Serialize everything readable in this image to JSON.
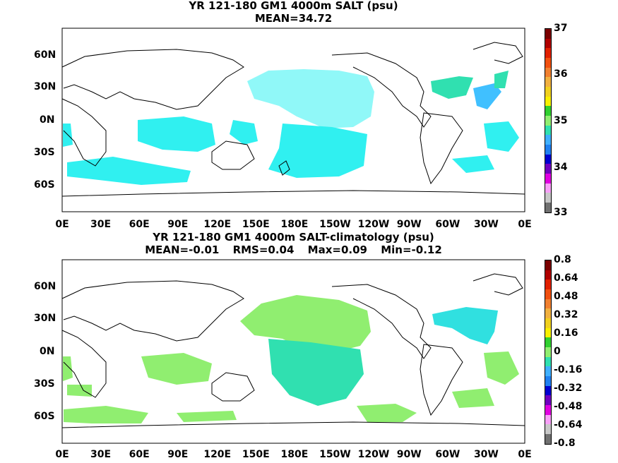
{
  "panels": [
    {
      "title": "YR 121-180 GM1 4000m SALT (psu)",
      "stats": [
        "MEAN=34.72"
      ],
      "colorbar_labels": [
        "37",
        "36",
        "35",
        "34",
        "33"
      ],
      "colorbar_colors": [
        "#7a0000",
        "#b00000",
        "#e02000",
        "#f05010",
        "#f08030",
        "#f0b040",
        "#f0d020",
        "#f8f000",
        "#30d030",
        "#90ee70",
        "#30e0b0",
        "#40b0ff",
        "#2080f0",
        "#0000d0",
        "#7000c0",
        "#e000e0",
        "#f8a0f8",
        "#c8c8c8",
        "#707070"
      ],
      "x_ticks": [
        "0E",
        "30E",
        "60E",
        "90E",
        "120E",
        "150E",
        "180E",
        "150W",
        "120W",
        "90W",
        "60W",
        "30W",
        "0E"
      ],
      "y_ticks": [
        "60N",
        "30N",
        "0N",
        "30S",
        "60S"
      ],
      "map_data": {
        "type": "heatmap",
        "lon_range": [
          0,
          360
        ],
        "lat_range": [
          -90,
          90
        ],
        "value_range": [
          33,
          37
        ],
        "regions": [
          {
            "region": "central north pacific",
            "fill": "#90f8f8"
          },
          {
            "region": "indian ocean",
            "fill": "#30e0e0"
          },
          {
            "region": "southern ocean",
            "fill": "#30e0e0"
          },
          {
            "region": "south pacific",
            "fill": "#30e0e0"
          },
          {
            "region": "north atlantic",
            "fill": "#30e0b0"
          }
        ]
      }
    },
    {
      "title": "YR 121-180 GM1 4000m SALT-climatology (psu)",
      "stats": [
        "MEAN=-0.01",
        "RMS=0.04",
        "Max=0.09",
        "Min=-0.12"
      ],
      "colorbar_labels": [
        "0.8",
        "0.64",
        "0.48",
        "0.32",
        "0.16",
        "0",
        "-0.16",
        "-0.32",
        "-0.48",
        "-0.64",
        "-0.8"
      ],
      "colorbar_colors": [
        "#7a0000",
        "#b00000",
        "#e02000",
        "#f05010",
        "#f08030",
        "#f0b040",
        "#f0d020",
        "#f8f000",
        "#30d030",
        "#90ee70",
        "#30e0b0",
        "#40b0ff",
        "#2080f0",
        "#0000d0",
        "#7000c0",
        "#e000e0",
        "#f8a0f8",
        "#c8c8c8",
        "#707070"
      ],
      "x_ticks": [
        "0E",
        "30E",
        "60E",
        "90E",
        "120E",
        "150E",
        "180E",
        "150W",
        "120W",
        "90W",
        "60W",
        "30W",
        "0E"
      ],
      "y_ticks": [
        "60N",
        "30N",
        "0N",
        "30S",
        "60S"
      ],
      "map_data": {
        "type": "heatmap",
        "lon_range": [
          0,
          360
        ],
        "lat_range": [
          -90,
          90
        ],
        "value_range": [
          -0.8,
          0.8
        ],
        "regions": [
          {
            "region": "north pacific",
            "fill": "#90ee70"
          },
          {
            "region": "south pacific",
            "fill": "#30e0b0"
          },
          {
            "region": "indian ocean",
            "fill": "#90ee70"
          },
          {
            "region": "southern ocean",
            "fill": "#90ee70"
          },
          {
            "region": "north atlantic",
            "fill": "#30e0e0"
          }
        ]
      }
    }
  ]
}
